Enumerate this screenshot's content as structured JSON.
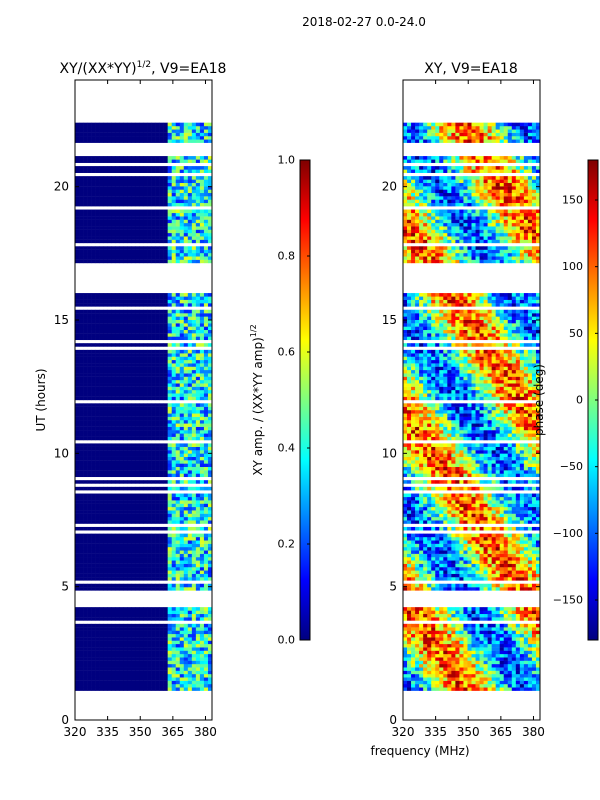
{
  "suptitle": "2018-02-27 0.0-24.0",
  "chart_data": [
    {
      "type": "heatmap",
      "title": "XY/(XX*YY)^{1/2}, V9=EA18",
      "title_main": "XY/(XX*YY)",
      "title_sup": "1/2",
      "title_tail": ", V9=EA18",
      "xlabel": "",
      "ylabel": "UT (hours)",
      "xlim": [
        320,
        383
      ],
      "ylim": [
        0,
        24
      ],
      "xticks": [
        320,
        335,
        350,
        365,
        380
      ],
      "yticks": [
        0,
        5,
        10,
        15,
        20
      ],
      "data_x_range": [
        320,
        383
      ],
      "data_y_range": [
        1.1,
        22.4
      ],
      "blank_ut_gaps": [
        [
          16.0,
          17.1
        ],
        [
          4.2,
          4.9
        ]
      ],
      "colormap": "jet",
      "colorbar": {
        "label": "XY amp. / (XX*YY amp)^{1/2}",
        "label_main": "XY amp. / (XX*YY amp)",
        "label_sup": "1/2",
        "range": [
          0.0,
          1.0
        ],
        "ticks": [
          "0.0",
          "0.2",
          "0.4",
          "0.6",
          "0.8",
          "1.0"
        ]
      }
    },
    {
      "type": "heatmap",
      "title": "XY, V9=EA18",
      "xlabel": "frequency (MHz)",
      "ylabel": "",
      "xlim": [
        320,
        383
      ],
      "ylim": [
        0,
        24
      ],
      "xticks": [
        320,
        335,
        350,
        365,
        380
      ],
      "yticks": [
        0,
        5,
        10,
        15,
        20
      ],
      "data_x_range": [
        320,
        383
      ],
      "data_y_range": [
        1.1,
        22.4
      ],
      "blank_ut_gaps": [
        [
          16.0,
          17.1
        ],
        [
          4.2,
          4.9
        ]
      ],
      "colormap": "jet",
      "colorbar": {
        "label": "phase (deg)",
        "range": [
          -180,
          180
        ],
        "ticks": [
          "-150",
          "-100",
          "-50",
          "0",
          "50",
          "100",
          "150"
        ],
        "tick_values": [
          -150,
          -100,
          -50,
          0,
          50,
          100,
          150
        ]
      }
    }
  ],
  "colors": {
    "jet": [
      "#00007f",
      "#0000ff",
      "#007fff",
      "#00ffff",
      "#7fff7f",
      "#ffff00",
      "#ff7f00",
      "#ff0000",
      "#7f0000"
    ],
    "background": "#ffffff",
    "axis": "#000000"
  }
}
